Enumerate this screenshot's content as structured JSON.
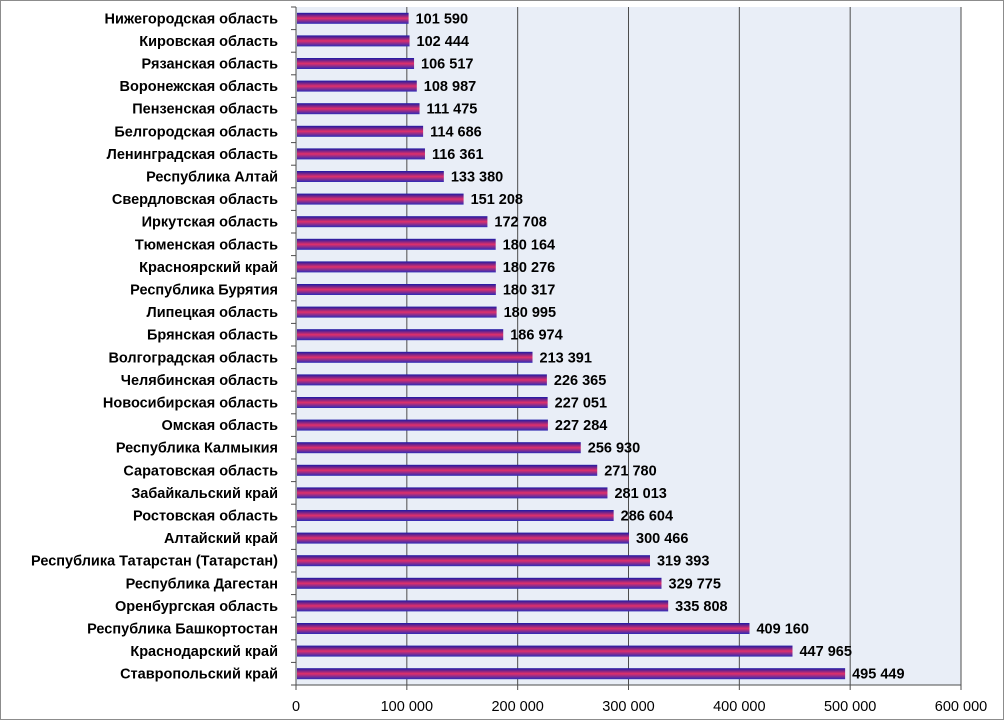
{
  "chart_data": {
    "type": "bar",
    "orientation": "horizontal",
    "title": "",
    "xlabel": "",
    "ylabel": "",
    "xlim": [
      0,
      600000
    ],
    "grid": true,
    "legend": "none",
    "x_ticks": [
      0,
      100000,
      200000,
      300000,
      400000,
      500000,
      600000
    ],
    "x_tick_labels": [
      "0",
      "100 000",
      "200 000",
      "300 000",
      "400 000",
      "500 000",
      "600 000"
    ],
    "categories": [
      "Нижегородская область",
      "Кировская область",
      "Рязанская  область",
      "Воронежская область",
      "Пензенская область",
      "Белгородская область",
      "Ленинградская область",
      "Республика Алтай",
      "Свердловская область",
      "Иркутская  область",
      "Тюменская область",
      "Красноярский край",
      "Республика Бурятия",
      "Липецкая область",
      "Брянская область",
      "Волгоградская область",
      "Челябинская область",
      "Новосибирская область",
      "Омская область",
      "Республика Калмыкия",
      "Саратовская  область",
      "Забайкальский край",
      "Ростовская  область",
      "Алтайский край",
      "Республика Татарстан  (Татарстан)",
      "Республика Дагестан",
      "Оренбургская область",
      "Республика Башкортостан",
      "Краснодарский край",
      "Ставропольский край"
    ],
    "values": [
      101590,
      102444,
      106517,
      108987,
      111475,
      114686,
      116361,
      133380,
      151208,
      172708,
      180164,
      180276,
      180317,
      180995,
      186974,
      213391,
      226365,
      227051,
      227284,
      256930,
      271780,
      281013,
      286604,
      300466,
      319393,
      329775,
      335808,
      409160,
      447965,
      495449
    ],
    "value_labels": [
      "101 590",
      "102 444",
      "106 517",
      "108 987",
      "111 475",
      "114 686",
      "116 361",
      "133 380",
      "151 208",
      "172 708",
      "180 164",
      "180 276",
      "180 317",
      "180 995",
      "186 974",
      "213 391",
      "226 365",
      "227 051",
      "227 284",
      "256 930",
      "271 780",
      "281 013",
      "286 604",
      "300 466",
      "319 393",
      "329 775",
      "335 808",
      "409 160",
      "447 965",
      "495 449"
    ]
  },
  "colors": {
    "bar_top": "#1a1aa6",
    "bar_middle": "#e0306a",
    "bar_bottom": "#2b2bb8",
    "plot_background": "#e9eef7",
    "gridline": "#4d4d4d",
    "axis": "#4d4d4d"
  }
}
